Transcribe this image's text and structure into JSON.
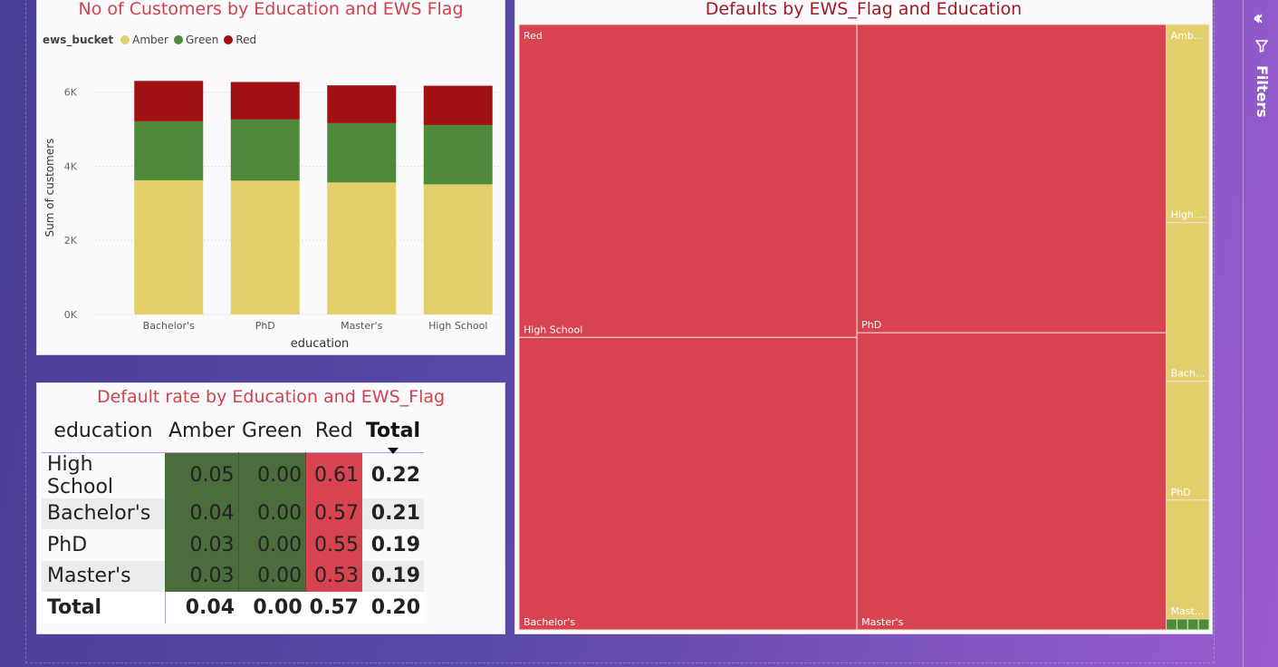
{
  "bar_chart": {
    "title": "No of Customers by Education and EWS Flag",
    "legend_title": "ews_bucket",
    "colors": {
      "Amber": "#e4cf6d",
      "Green": "#4e8a3a",
      "Red": "#a11012"
    },
    "chart_data": {
      "type": "bar",
      "stacked": true,
      "categories": [
        "Bachelor's",
        "PhD",
        "Master's",
        "High School"
      ],
      "series": [
        {
          "name": "Amber",
          "values": [
            3620,
            3610,
            3560,
            3510
          ]
        },
        {
          "name": "Green",
          "values": [
            1590,
            1650,
            1600,
            1600
          ]
        },
        {
          "name": "Red",
          "values": [
            1090,
            1010,
            1020,
            1060
          ]
        }
      ],
      "xlabel": "education",
      "ylabel": "Sum of customers",
      "ylim": [
        0,
        6600
      ],
      "yticks": [
        0,
        2000,
        4000,
        6000
      ],
      "ytick_labels": [
        "0K",
        "2K",
        "4K",
        "6K"
      ],
      "grid": true,
      "legend_position": "top-left"
    }
  },
  "matrix": {
    "title": "Default rate by Education and EWS_Flag",
    "headers": [
      "education",
      "Amber",
      "Green",
      "Red",
      "Total"
    ],
    "rows": [
      {
        "label": "High School",
        "values": [
          "0.05",
          "0.00",
          "0.61"
        ],
        "total": "0.22"
      },
      {
        "label": "Bachelor's",
        "values": [
          "0.04",
          "0.00",
          "0.57"
        ],
        "total": "0.21"
      },
      {
        "label": "PhD",
        "values": [
          "0.03",
          "0.00",
          "0.55"
        ],
        "total": "0.19"
      },
      {
        "label": "Master's",
        "values": [
          "0.03",
          "0.00",
          "0.53"
        ],
        "total": "0.19"
      }
    ],
    "total_row": {
      "label": "Total",
      "values": [
        "0.04",
        "0.00",
        "0.57"
      ],
      "total": "0.20"
    }
  },
  "treemap": {
    "title": "Defaults by EWS_Flag and Education",
    "colors": {
      "Red": "#d7444f",
      "Amber": "#e4cf6d",
      "Green": "#4e8a3a"
    },
    "chart_data": {
      "type": "treemap",
      "groups": [
        {
          "name": "Red",
          "label": "Red",
          "children": [
            {
              "name": "High School",
              "label": "High School",
              "value": 0.61
            },
            {
              "name": "Bachelor's",
              "label": "Bachelor's",
              "value": 0.57
            },
            {
              "name": "PhD",
              "label": "PhD",
              "value": 0.55
            },
            {
              "name": "Master's",
              "label": "Master's",
              "value": 0.53
            }
          ]
        },
        {
          "name": "Amber",
          "label": "Amb...",
          "children": [
            {
              "name": "High School",
              "label": "High ...",
              "value": 0.05
            },
            {
              "name": "Bachelor's",
              "label": "Bach...",
              "value": 0.04
            },
            {
              "name": "PhD",
              "label": "PhD",
              "value": 0.03
            },
            {
              "name": "Master's",
              "label": "Mast...",
              "value": 0.03
            }
          ]
        },
        {
          "name": "Green",
          "label": "",
          "children": [
            {
              "name": "High School",
              "label": "",
              "value": 0.0
            },
            {
              "name": "Bachelor's",
              "label": "",
              "value": 0.0
            },
            {
              "name": "PhD",
              "label": "",
              "value": 0.0
            },
            {
              "name": "Master's",
              "label": "",
              "value": 0.0
            }
          ]
        }
      ]
    }
  },
  "filters_pane": {
    "label": "Filters",
    "icons": [
      "collapse-chevrons-icon",
      "filter-funnel-icon"
    ]
  }
}
